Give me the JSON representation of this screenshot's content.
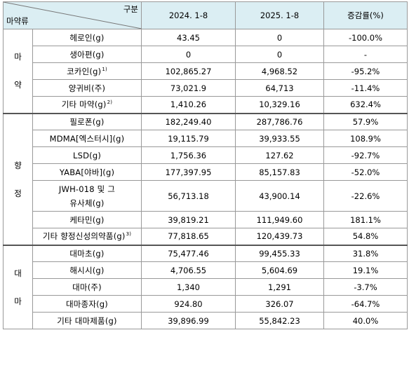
{
  "header": {
    "corner_top": "구분",
    "corner_bottom": "마약류",
    "col_2024": "2024. 1-8",
    "col_2025": "2025. 1-8",
    "col_change": "증감률(%)"
  },
  "groups": [
    {
      "category_chars": [
        "마",
        "약"
      ],
      "rows": [
        {
          "name": "헤로인(g)",
          "note": "",
          "v2024": "43.45",
          "v2025": "0",
          "change": "-100.0%"
        },
        {
          "name": "생아편(g)",
          "note": "",
          "v2024": "0",
          "v2025": "0",
          "change": "-"
        },
        {
          "name": "코카인(g)",
          "note": "1)",
          "v2024": "102,865.27",
          "v2025": "4,968.52",
          "change": "-95.2%"
        },
        {
          "name": "양귀비(주)",
          "note": "",
          "v2024": "73,021.9",
          "v2025": "64,713",
          "change": "-11.4%"
        },
        {
          "name": "기타 마약(g)",
          "note": "2)",
          "v2024": "1,410.26",
          "v2025": "10,329.16",
          "change": "632.4%"
        }
      ]
    },
    {
      "category_chars": [
        "향",
        "정"
      ],
      "rows": [
        {
          "name": "필로폰(g)",
          "note": "",
          "v2024": "182,249.40",
          "v2025": "287,786.76",
          "change": "57.9%"
        },
        {
          "name": "MDMA[엑스터시](g)",
          "note": "",
          "v2024": "19,115.79",
          "v2025": "39,933.55",
          "change": "108.9%"
        },
        {
          "name": "LSD(g)",
          "note": "",
          "v2024": "1,756.36",
          "v2025": "127.62",
          "change": "-92.7%"
        },
        {
          "name": "YABA[야바](g)",
          "note": "",
          "v2024": "177,397.95",
          "v2025": "85,157.83",
          "change": "-52.0%"
        },
        {
          "name": "JWH-018 및 그",
          "name2": "유사체(g)",
          "note": "",
          "v2024": "56,713.18",
          "v2025": "43,900.14",
          "change": "-22.6%"
        },
        {
          "name": "케타민(g)",
          "note": "",
          "v2024": "39,819.21",
          "v2025": "111,949.60",
          "change": "181.1%"
        },
        {
          "name": "기타 향정신성의약품(g)",
          "note": "3)",
          "v2024": "77,818.65",
          "v2025": "120,439.73",
          "change": "54.8%"
        }
      ]
    },
    {
      "category_chars": [
        "대",
        "마"
      ],
      "rows": [
        {
          "name": "대마초(g)",
          "note": "",
          "v2024": "75,477.46",
          "v2025": "99,455.33",
          "change": "31.8%"
        },
        {
          "name": "해시시(g)",
          "note": "",
          "v2024": "4,706.55",
          "v2025": "5,604.69",
          "change": "19.1%"
        },
        {
          "name": "대마(주)",
          "note": "",
          "v2024": "1,340",
          "v2025": "1,291",
          "change": "-3.7%"
        },
        {
          "name": "대마종자(g)",
          "note": "",
          "v2024": "924.80",
          "v2025": "326.07",
          "change": "-64.7%"
        },
        {
          "name": "기타 대마제품(g)",
          "note": "",
          "v2024": "39,896.99",
          "v2025": "55,842.23",
          "change": "40.0%"
        }
      ]
    }
  ]
}
